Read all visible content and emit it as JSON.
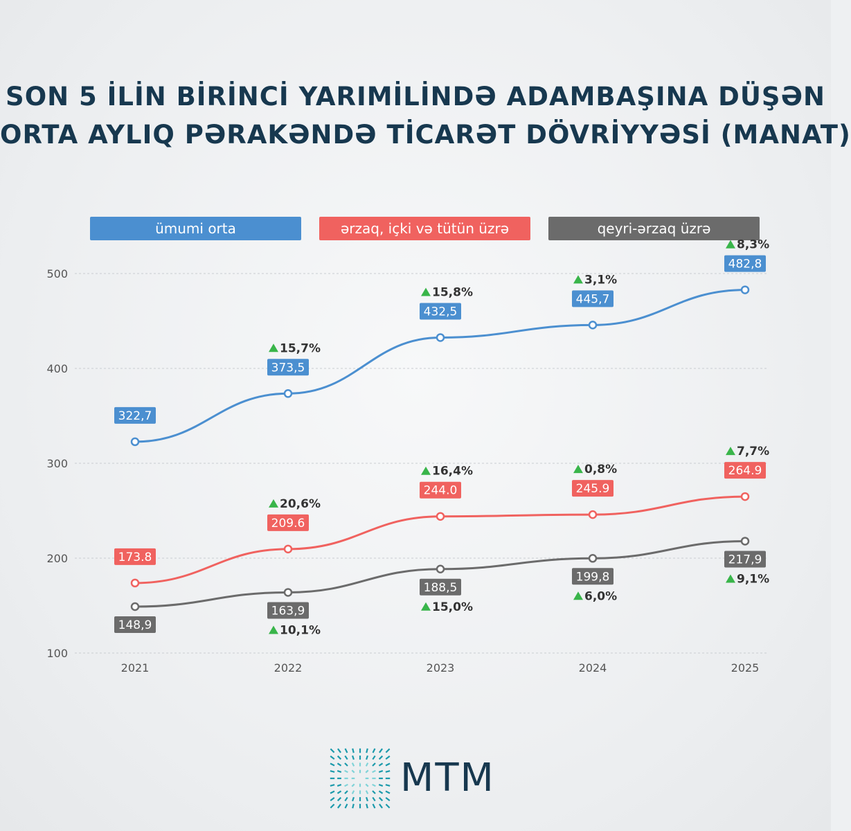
{
  "title": {
    "line1": "SON 5 İLİN BİRİNCİ YARIMİLİNDƏ ADAMBAŞINA DÜŞƏN",
    "line2": "ORTA AYLIQ PƏRAKƏNDƏ TİCARƏT DÖVRİYYƏSİ (MANAT)"
  },
  "logo": {
    "text": "MTM"
  },
  "colors": {
    "blue": "#4b8fd0",
    "red": "#f0625f",
    "gray": "#6b6b6b",
    "up": "#39b54a",
    "title": "#17384f"
  },
  "chart_data": {
    "type": "line",
    "x": [
      "2021",
      "2022",
      "2023",
      "2024",
      "2025"
    ],
    "ylim": [
      100,
      500
    ],
    "yticks": [
      "100",
      "200",
      "300",
      "400",
      "500"
    ],
    "grid": true,
    "legend_position": "top",
    "series": [
      {
        "name": "ümumi orta",
        "values": [
          322.7,
          373.5,
          432.5,
          445.7,
          482.8
        ],
        "labels": [
          "322,7",
          "373,5",
          "432,5",
          "445,7",
          "482,8"
        ],
        "growth": [
          "",
          "15,7%",
          "15,8%",
          "3,1%",
          "8,3%"
        ]
      },
      {
        "name": "ərzaq, içki və tütün üzrə",
        "values": [
          173.8,
          209.6,
          244.0,
          245.9,
          264.9
        ],
        "labels": [
          "173.8",
          "209.6",
          "244.0",
          "245.9",
          "264.9"
        ],
        "growth": [
          "",
          "20,6%",
          "16,4%",
          "0,8%",
          "7,7%"
        ]
      },
      {
        "name": "qeyri-ərzaq üzrə",
        "values": [
          148.9,
          163.9,
          188.5,
          199.8,
          217.9
        ],
        "labels": [
          "148,9",
          "163,9",
          "188,5",
          "199,8",
          "217,9"
        ],
        "growth": [
          "",
          "10,1%",
          "15,0%",
          "6,0%",
          "9,1%"
        ]
      }
    ]
  }
}
